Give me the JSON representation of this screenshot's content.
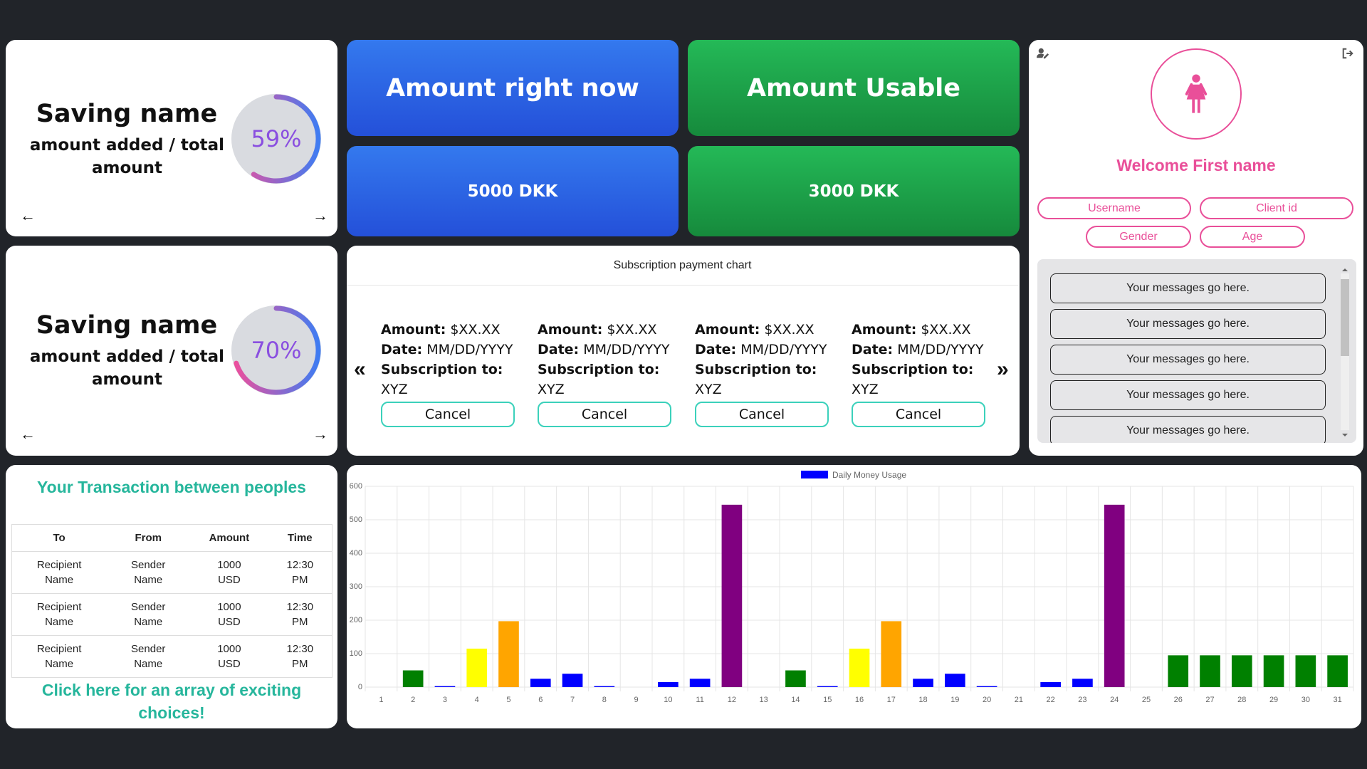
{
  "saving_cards": [
    {
      "title": "Saving name",
      "subtitle": "amount added / total amount",
      "percent_label": "59%",
      "progress": 0.59
    },
    {
      "title": "Saving name",
      "subtitle": "amount added / total amount",
      "percent_label": "70%",
      "progress": 0.7
    }
  ],
  "arrows": {
    "left": "←",
    "right": "→"
  },
  "tiles": {
    "amount_now_label": "Amount right now",
    "amount_now_value": "5000 DKK",
    "amount_usable_label": "Amount Usable",
    "amount_usable_value": "3000 DKK"
  },
  "subscription": {
    "title": "Subscription payment chart",
    "prev": "«",
    "next": "»",
    "items": [
      {
        "amount_label": "Amount:",
        "amount": "$XX.XX",
        "date_label": "Date:",
        "date": "MM/DD/YYYY",
        "sub_label": "Subscription to:",
        "sub": "XYZ",
        "cancel": "Cancel"
      },
      {
        "amount_label": "Amount:",
        "amount": "$XX.XX",
        "date_label": "Date:",
        "date": "MM/DD/YYYY",
        "sub_label": "Subscription to:",
        "sub": "XYZ",
        "cancel": "Cancel"
      },
      {
        "amount_label": "Amount:",
        "amount": "$XX.XX",
        "date_label": "Date:",
        "date": "MM/DD/YYYY",
        "sub_label": "Subscription to:",
        "sub": "XYZ",
        "cancel": "Cancel"
      },
      {
        "amount_label": "Amount:",
        "amount": "$XX.XX",
        "date_label": "Date:",
        "date": "MM/DD/YYYY",
        "sub_label": "Subscription to:",
        "sub": "XYZ",
        "cancel": "Cancel"
      }
    ]
  },
  "profile": {
    "welcome": "Welcome First name",
    "pills": {
      "username": "Username",
      "client_id": "Client id",
      "gender": "Gender",
      "age": "Age"
    },
    "messages": [
      "Your messages go here.",
      "Your messages go here.",
      "Your messages go here.",
      "Your messages go here.",
      "Your messages go here."
    ],
    "accent": "#e94f99"
  },
  "transactions": {
    "title": "Your Transaction between peoples",
    "headers": [
      "To",
      "From",
      "Amount",
      "Time"
    ],
    "rows": [
      [
        "Recipient Name",
        "Sender Name",
        "1000 USD",
        "12:30 PM"
      ],
      [
        "Recipient Name",
        "Sender Name",
        "1000 USD",
        "12:30 PM"
      ],
      [
        "Recipient Name",
        "Sender Name",
        "1000 USD",
        "12:30 PM"
      ]
    ],
    "link": "Click here for an array of exciting choices!",
    "accent": "#26b69c"
  },
  "chart_data": {
    "type": "bar",
    "legend": "Daily Money Usage",
    "legend_color": "#0000ff",
    "categories": [
      "1",
      "2",
      "3",
      "4",
      "5",
      "6",
      "7",
      "8",
      "9",
      "10",
      "11",
      "12",
      "13",
      "14",
      "15",
      "16",
      "17",
      "18",
      "19",
      "20",
      "21",
      "22",
      "23",
      "24",
      "25",
      "26",
      "27",
      "28",
      "29",
      "30",
      "31"
    ],
    "values": [
      0,
      50,
      3,
      115,
      197,
      25,
      40,
      3,
      0,
      15,
      25,
      545,
      0,
      50,
      3,
      115,
      197,
      25,
      40,
      3,
      0,
      15,
      25,
      545,
      0,
      95,
      95,
      95,
      95,
      95,
      95
    ],
    "colors": [
      "#0000ff",
      "#008000",
      "#0000ff",
      "#ffff00",
      "#ffa500",
      "#0000ff",
      "#0000ff",
      "#0000ff",
      "#0000ff",
      "#0000ff",
      "#0000ff",
      "#800080",
      "#0000ff",
      "#008000",
      "#0000ff",
      "#ffff00",
      "#ffa500",
      "#0000ff",
      "#0000ff",
      "#0000ff",
      "#0000ff",
      "#0000ff",
      "#0000ff",
      "#800080",
      "#0000ff",
      "#008000",
      "#008000",
      "#008000",
      "#008000",
      "#008000",
      "#008000"
    ],
    "yticks": [
      0,
      100,
      200,
      300,
      400,
      500,
      600
    ],
    "ylim": [
      0,
      600
    ],
    "grid": true,
    "legend_position": "top"
  }
}
